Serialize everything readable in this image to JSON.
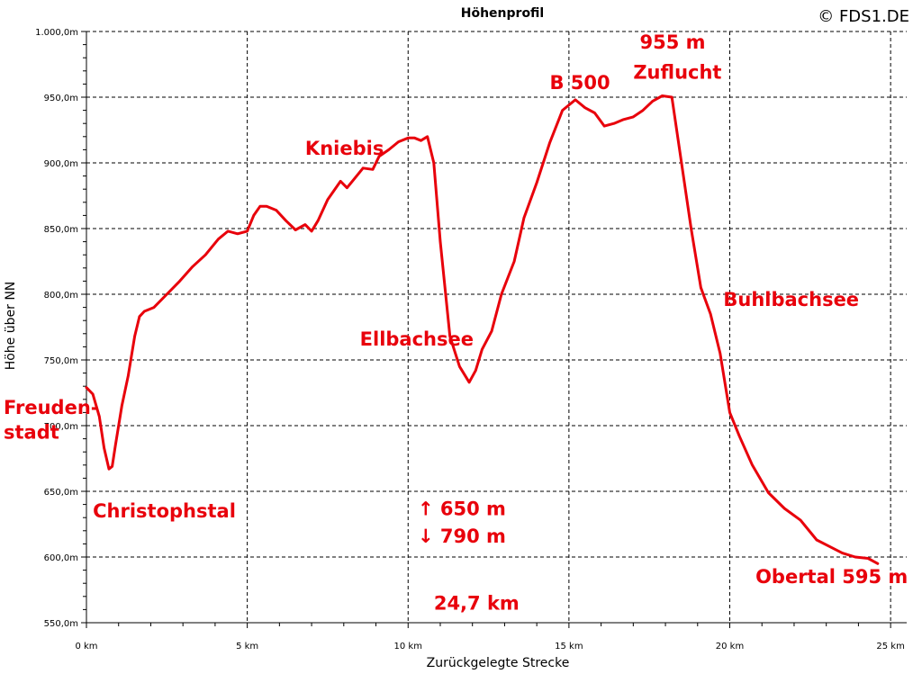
{
  "chart_data": {
    "type": "line",
    "title": "Höhenprofil",
    "copyright": "© FDS1.DE",
    "xlabel": "Zurückgelegte Strecke",
    "ylabel": "Höhe über NN",
    "xlim": [
      0,
      25.5
    ],
    "ylim": [
      550,
      1000
    ],
    "x_ticks": [
      0,
      5,
      10,
      15,
      20,
      25
    ],
    "x_tick_labels": [
      "0 km",
      "5 km",
      "10 km",
      "15 km",
      "20 km",
      "25 km"
    ],
    "y_ticks": [
      550,
      600,
      650,
      700,
      750,
      800,
      850,
      900,
      950,
      1000
    ],
    "y_tick_labels": [
      "550,0m",
      "600,0m",
      "650,0m",
      "700,0m",
      "750,0m",
      "800,0m",
      "850,0m",
      "900,0m",
      "950,0m",
      "1.000,0m"
    ],
    "grid": true,
    "line_color": "#e8000b",
    "series": [
      {
        "x": [
          0,
          0.2,
          0.4,
          0.55,
          0.7,
          0.8,
          0.9,
          1.1,
          1.3,
          1.5,
          1.65,
          1.8,
          2.1,
          2.5,
          2.9,
          3.3,
          3.7,
          4.1,
          4.4,
          4.7,
          5.0,
          5.2,
          5.4,
          5.6,
          5.9,
          6.2,
          6.5,
          6.8,
          7.0,
          7.2,
          7.5,
          7.9,
          8.1,
          8.4,
          8.6,
          8.9,
          9.1,
          9.4,
          9.7,
          10.0,
          10.2,
          10.4,
          10.6,
          10.8,
          11.0,
          11.3,
          11.6,
          11.9,
          12.1,
          12.3,
          12.6,
          12.9,
          13.3,
          13.6,
          14.0,
          14.4,
          14.8,
          15.2,
          15.5,
          15.8,
          16.1,
          16.4,
          16.7,
          17.0,
          17.3,
          17.6,
          17.9,
          18.2,
          18.5,
          18.8,
          19.1,
          19.4,
          19.7,
          20.0,
          20.3,
          20.7,
          21.2,
          21.7,
          22.2,
          22.7,
          23.1,
          23.5,
          23.9,
          24.3,
          24.6
        ],
        "y": [
          729,
          724,
          707,
          683,
          667,
          669,
          685,
          715,
          738,
          768,
          783,
          787,
          790,
          800,
          810,
          821,
          830,
          842,
          848,
          846,
          848,
          860,
          867,
          867,
          864,
          856,
          849,
          853,
          848,
          856,
          872,
          886,
          881,
          890,
          896,
          895,
          905,
          910,
          916,
          919,
          919,
          917,
          920,
          900,
          840,
          768,
          745,
          733,
          742,
          758,
          772,
          800,
          825,
          858,
          885,
          915,
          940,
          948,
          942,
          938,
          928,
          930,
          933,
          935,
          940,
          947,
          951,
          950,
          900,
          850,
          805,
          785,
          755,
          710,
          692,
          670,
          649,
          637,
          628,
          613,
          608,
          603,
          600,
          599,
          595
        ]
      }
    ],
    "annotations": [
      {
        "text": "Freuden-",
        "x": 0,
        "y": 709
      },
      {
        "text": "stadt",
        "x": 0,
        "y": 690
      },
      {
        "text": "Christophstal",
        "x": 0.2,
        "y": 630
      },
      {
        "text": "Kniebis",
        "x": 6.8,
        "y": 906
      },
      {
        "text": "Ellbachsee",
        "x": 8.5,
        "y": 761
      },
      {
        "text": "B 500",
        "x": 14.4,
        "y": 956
      },
      {
        "text": "955 m",
        "x": 17.2,
        "y": 987
      },
      {
        "text": "Zuflucht",
        "x": 17.0,
        "y": 964
      },
      {
        "text": "Buhlbachsee",
        "x": 19.8,
        "y": 791
      },
      {
        "text": "↑  650 m",
        "x": 10.3,
        "y": 632
      },
      {
        "text": "↓  790 m",
        "x": 10.3,
        "y": 611
      },
      {
        "text": "24,7 km",
        "x": 10.8,
        "y": 560
      },
      {
        "text": "Obertal 595 m",
        "x": 20.8,
        "y": 580
      }
    ]
  }
}
